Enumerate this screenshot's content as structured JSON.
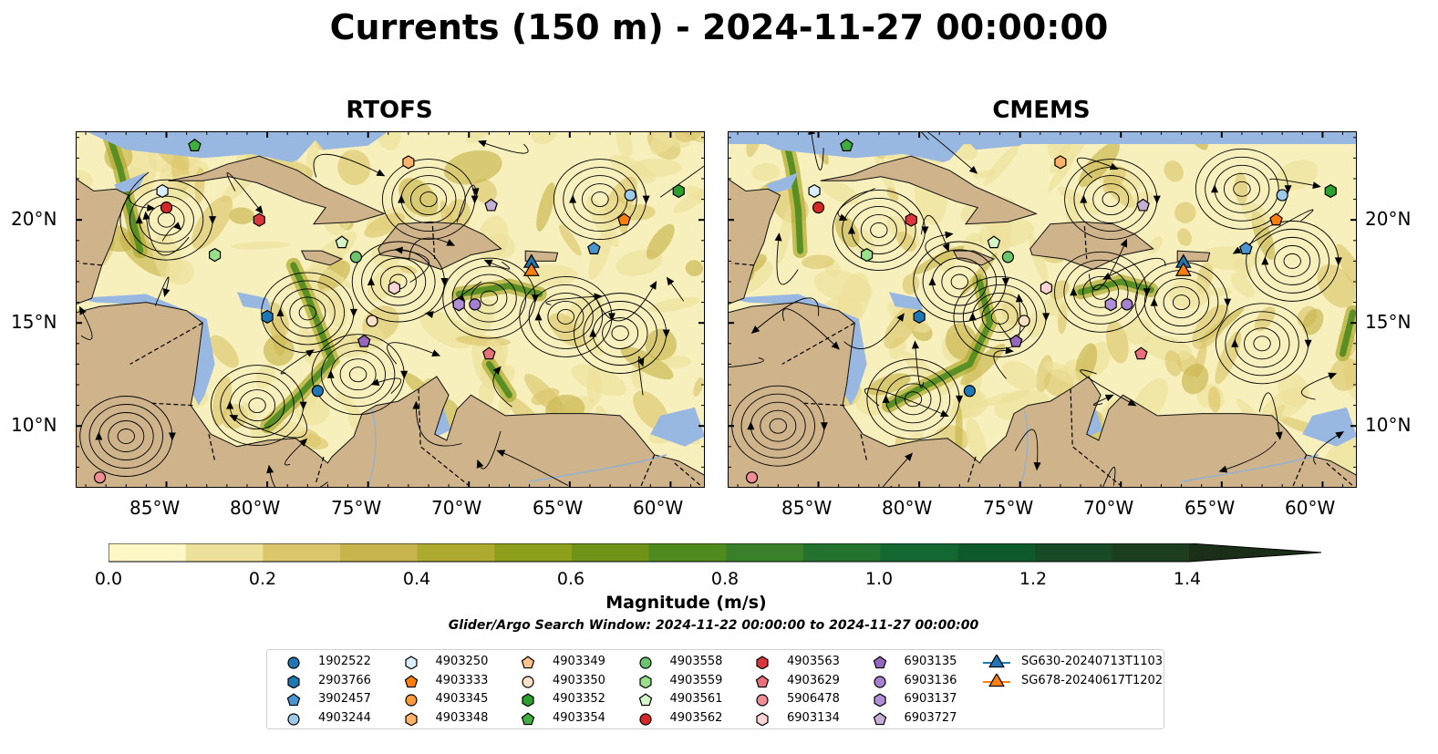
{
  "title": "Currents (150 m) - 2024-11-27 00:00:00",
  "panels": [
    {
      "title": "RTOFS"
    },
    {
      "title": "CMEMS"
    }
  ],
  "axis": {
    "lon_labels": [
      "85°W",
      "80°W",
      "75°W",
      "70°W",
      "65°W",
      "60°W"
    ],
    "lat_labels": [
      "10°N",
      "15°N",
      "20°N"
    ]
  },
  "colorbar": {
    "label": "Magnitude (m/s)",
    "ticks": [
      "0.0",
      "0.2",
      "0.4",
      "0.6",
      "0.8",
      "1.0",
      "1.2",
      "1.4"
    ],
    "range": [
      0.0,
      1.5
    ],
    "extend": "max",
    "colors": [
      "#fdf7c5",
      "#ede09a",
      "#dcc66b",
      "#c8b44c",
      "#aeaa2f",
      "#8c9e1a",
      "#6e9316",
      "#4f8a1e",
      "#3a7f2a",
      "#237230",
      "#136832",
      "#0e5a2c",
      "#194a27",
      "#1c3d1e",
      "#1b2e17"
    ]
  },
  "search_window": "Glider/Argo Search Window: 2024-11-22 00:00:00 to 2024-11-27 00:00:00",
  "legend": [
    {
      "id": "1902522",
      "marker": "circle",
      "color": "#1f77b4"
    },
    {
      "id": "2903766",
      "marker": "hexagon",
      "color": "#1f77b4"
    },
    {
      "id": "3902457",
      "marker": "pentagon",
      "color": "#4a95d0"
    },
    {
      "id": "4903244",
      "marker": "circle",
      "color": "#9ecae9"
    },
    {
      "id": "4903250",
      "marker": "hexagon",
      "color": "#d9eefb"
    },
    {
      "id": "4903333",
      "marker": "pentagon",
      "color": "#ff7f0e"
    },
    {
      "id": "4903345",
      "marker": "circle",
      "color": "#ff9a3c"
    },
    {
      "id": "4903348",
      "marker": "hexagon",
      "color": "#ffb36b"
    },
    {
      "id": "4903349",
      "marker": "pentagon",
      "color": "#fdc38a"
    },
    {
      "id": "4903350",
      "marker": "circle",
      "color": "#ffe0c4"
    },
    {
      "id": "4903352",
      "marker": "hexagon",
      "color": "#2ca02c"
    },
    {
      "id": "4903354",
      "marker": "pentagon",
      "color": "#3fae3f"
    },
    {
      "id": "4903558",
      "marker": "circle",
      "color": "#6cc46c"
    },
    {
      "id": "4903559",
      "marker": "hexagon",
      "color": "#98df8a"
    },
    {
      "id": "4903561",
      "marker": "pentagon",
      "color": "#d4f5c8"
    },
    {
      "id": "4903562",
      "marker": "circle",
      "color": "#d62728"
    },
    {
      "id": "4903563",
      "marker": "hexagon",
      "color": "#d9363e"
    },
    {
      "id": "4903629",
      "marker": "pentagon",
      "color": "#e8707a"
    },
    {
      "id": "5906478",
      "marker": "circle",
      "color": "#f08e94"
    },
    {
      "id": "6903134",
      "marker": "hexagon",
      "color": "#fdd4d6"
    },
    {
      "id": "6903135",
      "marker": "pentagon",
      "color": "#9467bd"
    },
    {
      "id": "6903136",
      "marker": "circle",
      "color": "#a580cf"
    },
    {
      "id": "6903137",
      "marker": "hexagon",
      "color": "#b08fd6"
    },
    {
      "id": "6903727",
      "marker": "pentagon",
      "color": "#c5b0d5"
    },
    {
      "id": "SG630-20240713T1103",
      "marker": "triangle",
      "color": "#1f77b4"
    },
    {
      "id": "SG678-20240617T1202",
      "marker": "triangle",
      "color": "#ff7f0e"
    }
  ],
  "floats": [
    {
      "id": "1902522",
      "lon": -77.5,
      "lat": 11.7
    },
    {
      "id": "2903766",
      "lon": -80.0,
      "lat": 15.3
    },
    {
      "id": "3902457",
      "lon": -63.8,
      "lat": 18.6
    },
    {
      "id": "4903244",
      "lon": -62.0,
      "lat": 21.2
    },
    {
      "id": "4903250",
      "lon": -85.2,
      "lat": 21.4
    },
    {
      "id": "4903333",
      "lon": -62.3,
      "lat": 20.0
    },
    {
      "id": "4903348",
      "lon": -73.0,
      "lat": 22.8
    },
    {
      "id": "4903350",
      "lon": -74.8,
      "lat": 15.1
    },
    {
      "id": "4903352",
      "lon": -59.6,
      "lat": 21.4
    },
    {
      "id": "4903354",
      "lon": -83.6,
      "lat": 23.6
    },
    {
      "id": "4903558",
      "lon": -75.6,
      "lat": 18.2
    },
    {
      "id": "4903559",
      "lon": -82.6,
      "lat": 18.3
    },
    {
      "id": "4903561",
      "lon": -76.3,
      "lat": 18.9
    },
    {
      "id": "4903562",
      "lon": -85.0,
      "lat": 20.6
    },
    {
      "id": "4903563",
      "lon": -80.4,
      "lat": 20.0
    },
    {
      "id": "4903629",
      "lon": -69.0,
      "lat": 13.5
    },
    {
      "id": "5906478",
      "lon": -88.3,
      "lat": 7.5
    },
    {
      "id": "6903134",
      "lon": -73.7,
      "lat": 16.7
    },
    {
      "id": "6903135",
      "lon": -75.2,
      "lat": 14.1
    },
    {
      "id": "6903136",
      "lon": -69.7,
      "lat": 15.9
    },
    {
      "id": "6903137",
      "lon": -70.5,
      "lat": 15.9
    },
    {
      "id": "6903727",
      "lon": -68.9,
      "lat": 20.7
    },
    {
      "id": "SG630-20240713T1103",
      "lon": -66.9,
      "lat": 17.9
    },
    {
      "id": "SG678-20240617T1202",
      "lon": -66.9,
      "lat": 17.5
    }
  ]
}
